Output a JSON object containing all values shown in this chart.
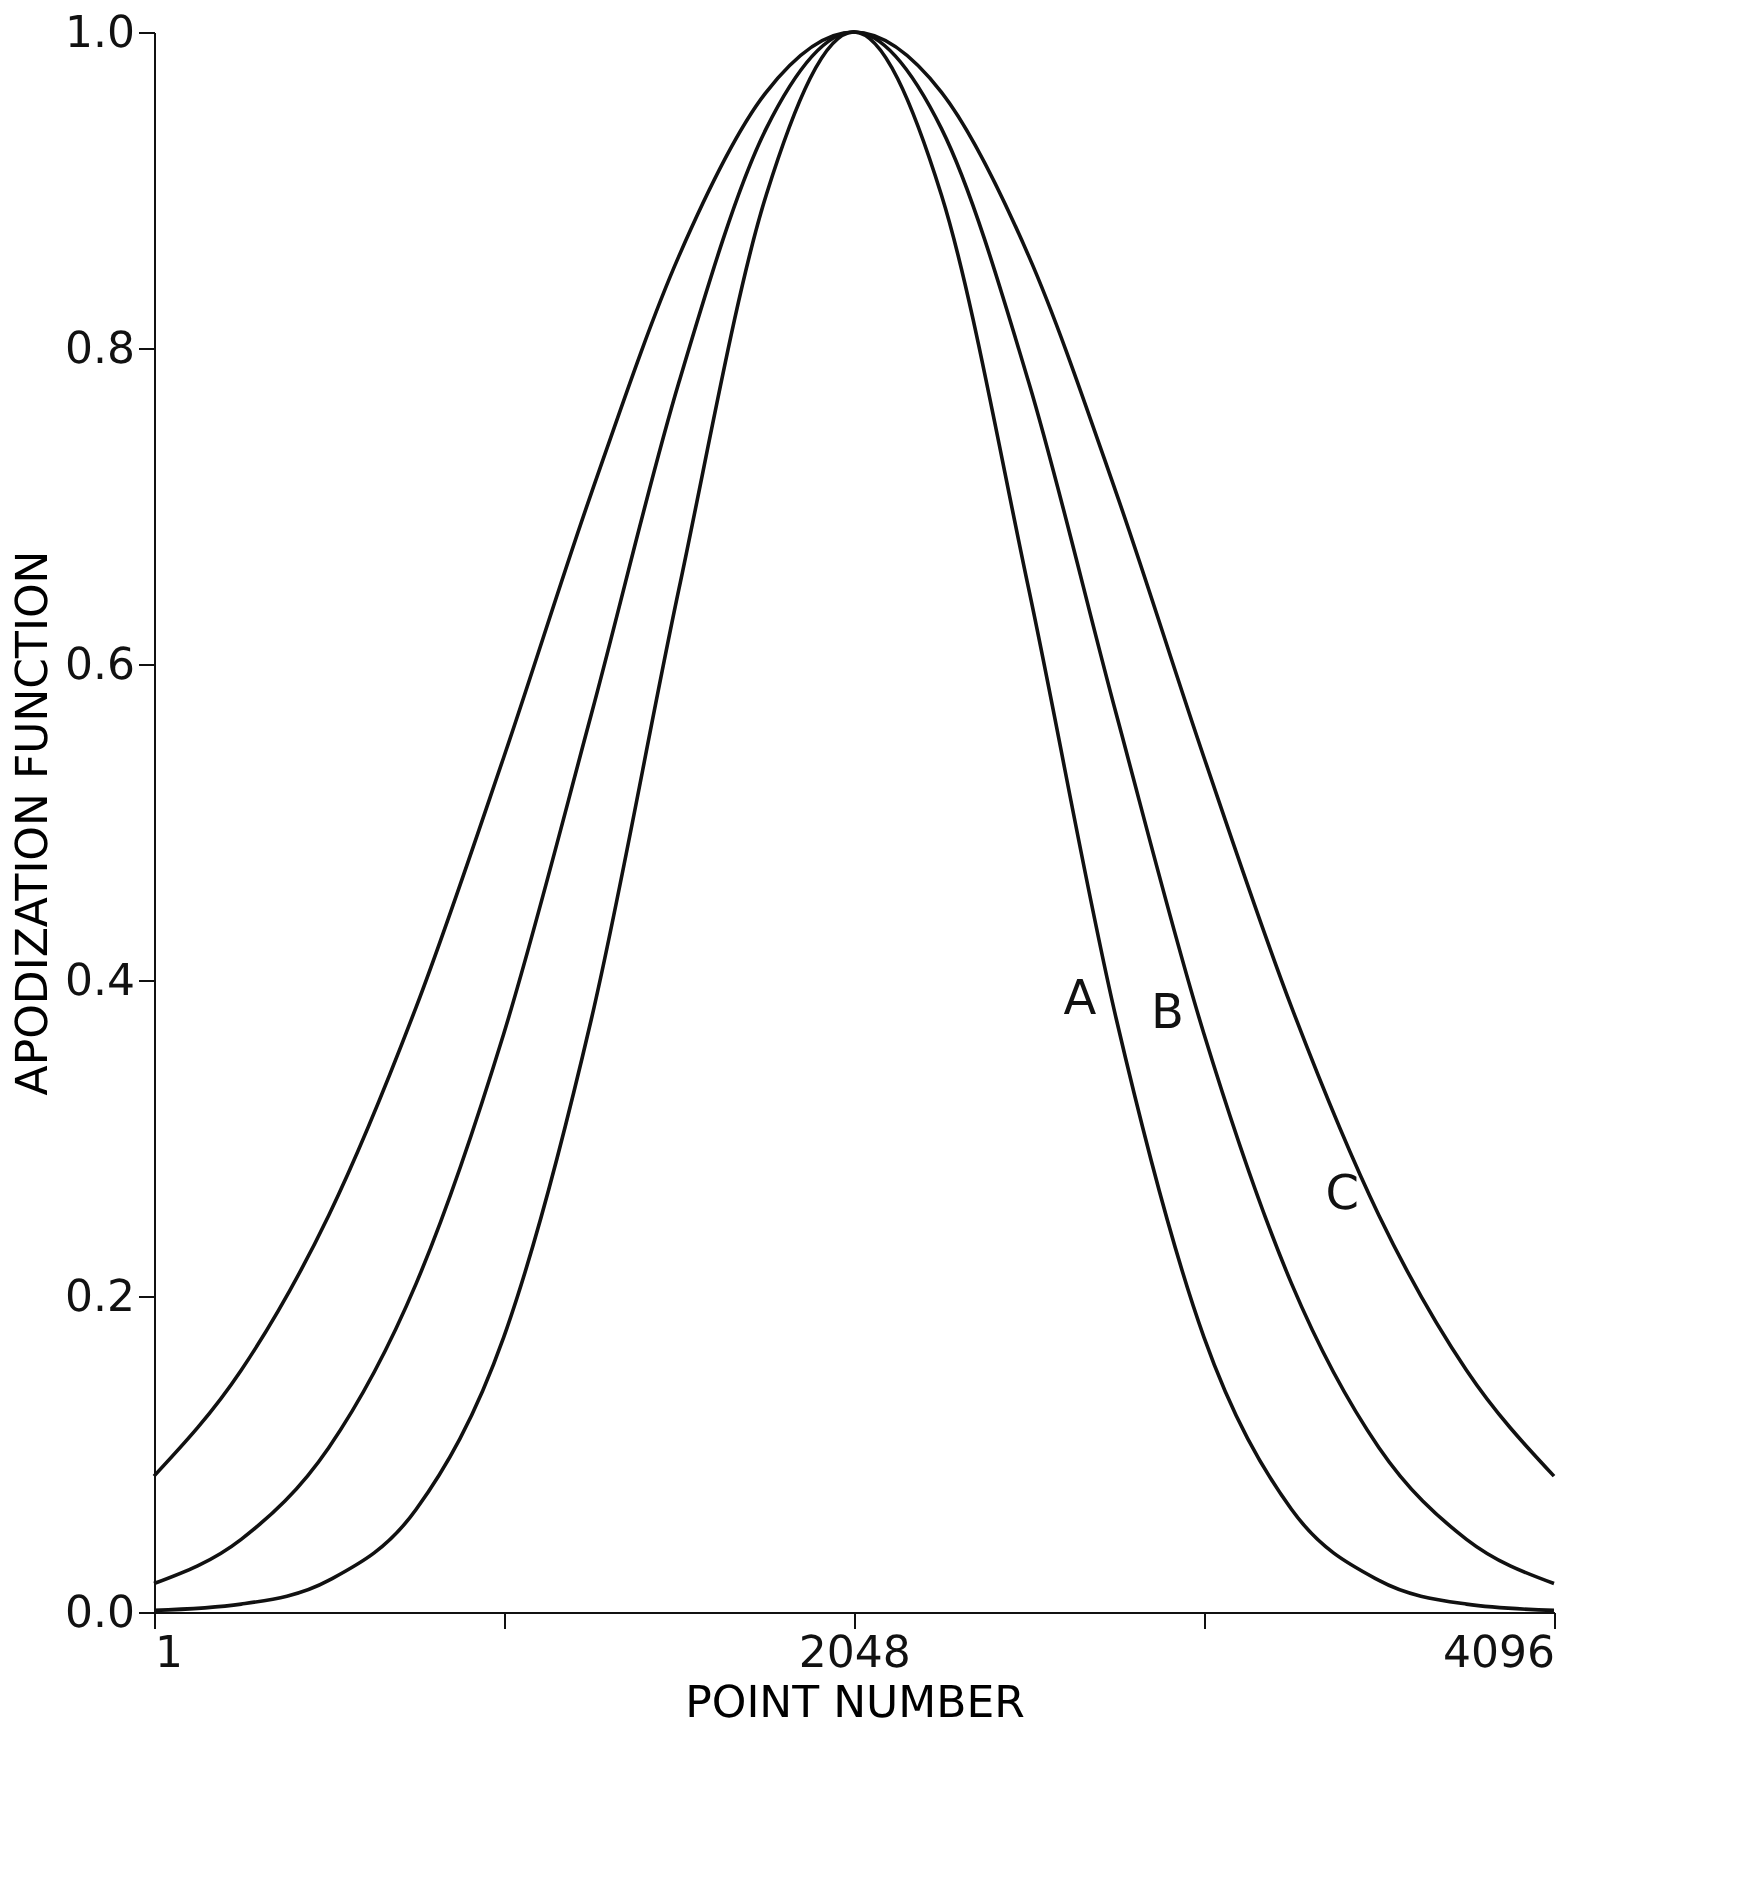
{
  "chart_data": {
    "type": "line",
    "xlabel": "POINT NUMBER",
    "ylabel": "APODIZATION FUNCTION",
    "x": [
      1,
      256,
      512,
      768,
      1024,
      1280,
      1536,
      1792,
      2048,
      2304,
      2560,
      2816,
      3072,
      3328,
      3584,
      3840,
      4096
    ],
    "series": [
      {
        "name": "A",
        "color": "#111111",
        "values": [
          0.001,
          0.005,
          0.02,
          0.065,
          0.174,
          0.375,
          0.647,
          0.897,
          1.0,
          0.897,
          0.647,
          0.375,
          0.174,
          0.065,
          0.02,
          0.005,
          0.001
        ]
      },
      {
        "name": "B",
        "color": "#111111",
        "values": [
          0.018,
          0.046,
          0.104,
          0.208,
          0.366,
          0.568,
          0.778,
          0.939,
          1.0,
          0.939,
          0.778,
          0.568,
          0.366,
          0.208,
          0.104,
          0.046,
          0.018
        ]
      },
      {
        "name": "C",
        "color": "#111111",
        "values": [
          0.086,
          0.153,
          0.251,
          0.383,
          0.541,
          0.708,
          0.858,
          0.962,
          1.0,
          0.962,
          0.858,
          0.708,
          0.541,
          0.383,
          0.251,
          0.153,
          0.086
        ]
      }
    ],
    "xlim": [
      1,
      4096
    ],
    "xticks": [
      1,
      {
        "value": 1024,
        "label": null
      },
      2048,
      {
        "value": 3072,
        "label": null
      },
      4096
    ],
    "ylim": [
      0,
      1
    ],
    "yticks": [
      {
        "value": 0,
        "label": "0.0"
      },
      {
        "value": 0.2,
        "label": "0.2"
      },
      {
        "value": 0.4,
        "label": "0.4"
      },
      {
        "value": 0.6,
        "label": "0.6"
      },
      {
        "value": 0.8,
        "label": "0.8"
      },
      {
        "value": 1,
        "label": "1.0"
      }
    ],
    "grid": false,
    "marker": "none",
    "line_style": "solid"
  }
}
